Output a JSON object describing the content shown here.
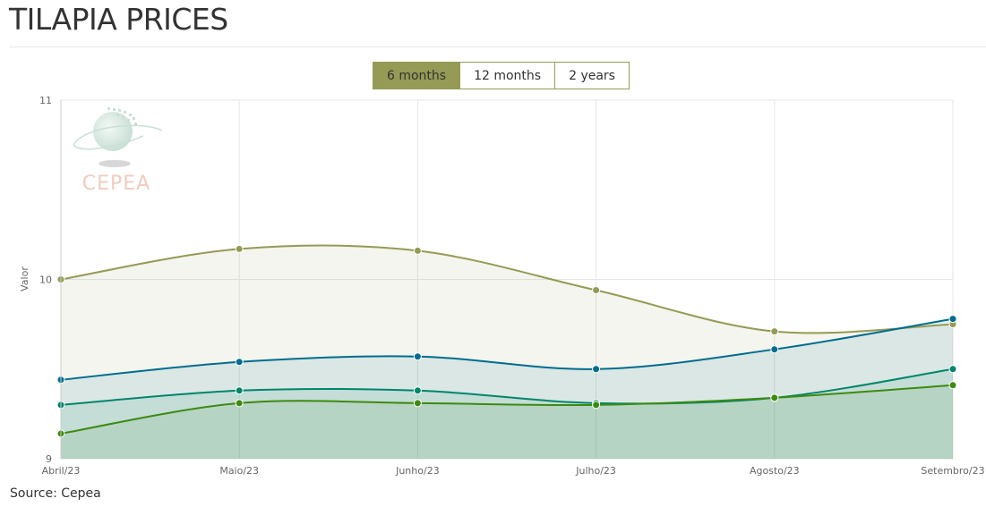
{
  "header": {
    "title": "TILAPIA PRICES"
  },
  "range_selector": {
    "options": [
      "6 months",
      "12 months",
      "2 years"
    ],
    "active_index": 0
  },
  "watermark": {
    "text": "CEPEA"
  },
  "source": "Source: Cepea",
  "colors": {
    "accent": "#959a55",
    "series": [
      "#959a55",
      "#006d8f",
      "#00866b",
      "#3d8a10"
    ]
  },
  "chart_data": {
    "type": "area",
    "ylabel": "Valor",
    "ylim": [
      9,
      11
    ],
    "yticks": [
      9,
      10,
      11
    ],
    "grid": true,
    "legend": "none",
    "categories": [
      "Abril/23",
      "Maio/23",
      "Junho/23",
      "Julho/23",
      "Agosto/23",
      "Setembro/23"
    ],
    "series": [
      {
        "values": [
          10.0,
          10.17,
          10.16,
          9.94,
          9.71,
          9.75
        ]
      },
      {
        "values": [
          9.44,
          9.54,
          9.57,
          9.5,
          9.61,
          9.78
        ]
      },
      {
        "values": [
          9.3,
          9.38,
          9.38,
          9.31,
          9.34,
          9.5
        ]
      },
      {
        "values": [
          9.14,
          9.31,
          9.31,
          9.3,
          9.34,
          9.41
        ]
      }
    ]
  }
}
